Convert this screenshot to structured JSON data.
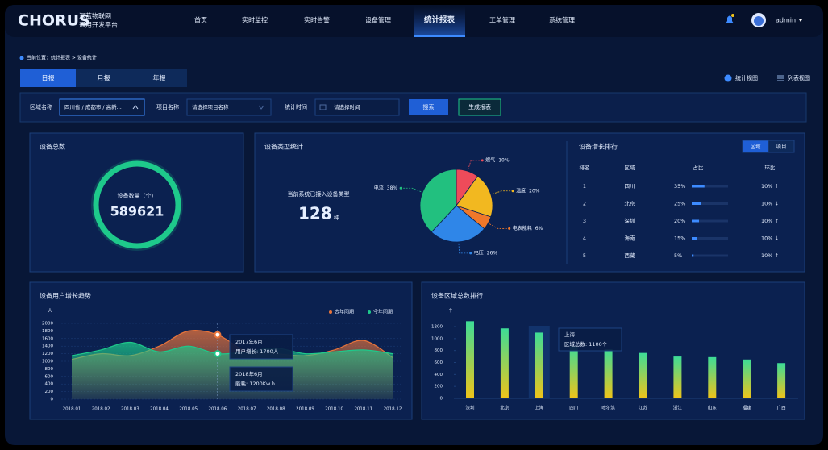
{
  "header": {
    "logo": "CHORUS",
    "brand_line1": "深蓝物联网",
    "brand_line2": "通用开发平台",
    "nav": [
      "首页",
      "实时监控",
      "实时告警",
      "设备管理",
      "统计报表",
      "工单管理",
      "系统管理"
    ],
    "active_nav": 4,
    "user": "admin"
  },
  "breadcrumb": "当前位置：统计报表 > 设备统计",
  "tabs": [
    "日报",
    "月报",
    "年报"
  ],
  "active_tab": 0,
  "view_toggles": [
    "统计视图",
    "列表视图"
  ],
  "filters": {
    "region_label": "区域名称",
    "region_value": "四川省 / 成都市 / 高新...",
    "project_label": "项目名称",
    "project_placeholder": "请选择项目名称",
    "time_label": "统计时间",
    "time_placeholder": "请选择时间",
    "search": "搜索",
    "generate": "生成报表"
  },
  "total_panel": {
    "title": "设备总数",
    "label": "设备数量（个）",
    "value": 589621
  },
  "type_panel": {
    "label": "当前系统已接入设备类型",
    "count": 128,
    "unit": "种"
  },
  "ranking": {
    "title": "设备增长排行",
    "toggles": [
      "区域",
      "项目"
    ],
    "active_toggle": 0,
    "columns": [
      "排名",
      "区域",
      "占比",
      "环比"
    ],
    "rows": [
      {
        "rank": 1,
        "region": "四川",
        "share": 35,
        "share_label": "35%",
        "mom": "10% ↑"
      },
      {
        "rank": 2,
        "region": "北京",
        "share": 25,
        "share_label": "25%",
        "mom": "10% ↓"
      },
      {
        "rank": 3,
        "region": "深圳",
        "share": 20,
        "share_label": "20%",
        "mom": "10% ↑"
      },
      {
        "rank": 4,
        "region": "海南",
        "share": 15,
        "share_label": "15%",
        "mom": "10% ↓"
      },
      {
        "rank": 5,
        "region": "西藏",
        "share": 5,
        "share_label": "5%",
        "mom": "10% ↑"
      }
    ]
  },
  "chart_data": [
    {
      "type": "pie",
      "title": "设备类型统计",
      "categories": [
        "燃气",
        "温度",
        "电表能耗",
        "电压",
        "电流"
      ],
      "values": [
        10,
        20,
        6,
        26,
        38
      ],
      "value_labels": [
        "10%",
        "20%",
        "6%",
        "26%",
        "38%"
      ],
      "colors": [
        "#ee4b5a",
        "#f2b820",
        "#f0782a",
        "#2f86e8",
        "#22c07f"
      ]
    },
    {
      "type": "line",
      "title": "设备用户增长趋势",
      "y_unit": "人",
      "x": [
        "2018.01",
        "2018.02",
        "2018.03",
        "2018.04",
        "2018.05",
        "2018.06",
        "2018.07",
        "2018.08",
        "2018.09",
        "2018.10",
        "2018.11",
        "2018.12"
      ],
      "series": [
        {
          "name": "去年同期",
          "color": "#e8743b",
          "values": [
            1050,
            1200,
            1150,
            1400,
            1800,
            1700,
            1250,
            1200,
            1150,
            1300,
            1550,
            1100
          ]
        },
        {
          "name": "今年同期",
          "color": "#1ec98b",
          "values": [
            1150,
            1300,
            1500,
            1250,
            1400,
            1200,
            1250,
            1350,
            1200,
            1250,
            1300,
            1200
          ]
        }
      ],
      "ylim": [
        0,
        2000
      ],
      "yticks": [
        0,
        200,
        400,
        600,
        800,
        1000,
        1200,
        1400,
        1600,
        1800,
        2000
      ],
      "tooltips": [
        {
          "title": "2017年6月",
          "text": "用户增长: 1700人"
        },
        {
          "title": "2018年6月",
          "text": "能耗: 1200Kw.h"
        }
      ],
      "tooltip_index": 5
    },
    {
      "type": "bar",
      "title": "设备区域总数排行",
      "y_unit": "个",
      "categories": [
        "深圳",
        "北京",
        "上海",
        "四川",
        "哈尔滨",
        "江苏",
        "浙江",
        "山东",
        "福建",
        "广西"
      ],
      "values": [
        1290,
        1170,
        1100,
        870,
        820,
        760,
        700,
        690,
        650,
        590
      ],
      "ylim": [
        0,
        1300
      ],
      "yticks": [
        0,
        200,
        400,
        600,
        800,
        1000,
        1200
      ],
      "color_top": "#3ddc97",
      "color_bottom": "#f0c419",
      "highlight": 2,
      "tooltip": {
        "title": "上海",
        "text": "区域总数: 1100个"
      }
    }
  ]
}
